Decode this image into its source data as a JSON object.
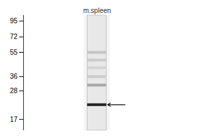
{
  "chart_data": {
    "type": "blot",
    "title": "m.spleen",
    "log": "y",
    "ylim": [
      14,
      105
    ],
    "yticks": [
      95,
      72,
      55,
      36,
      28,
      17
    ],
    "grid": false,
    "values": [
      55,
      48,
      42,
      36,
      31,
      22
    ],
    "intensity": [
      0.18,
      0.15,
      0.12,
      0.15,
      0.3,
      0.85
    ],
    "arrow": {
      "value": 22,
      "color": "#111111"
    }
  }
}
